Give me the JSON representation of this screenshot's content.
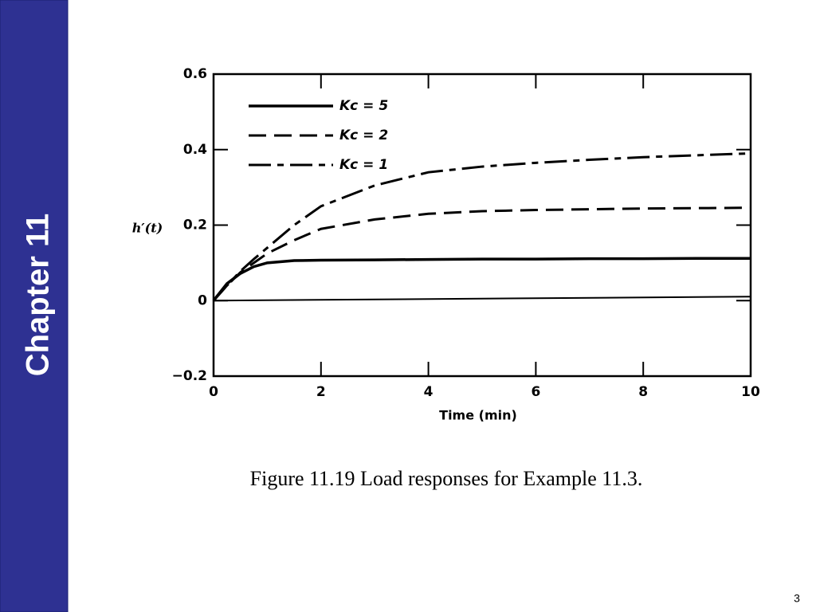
{
  "slide": {
    "sidebar": "Chapter 11",
    "caption": "Figure 11.19 Load responses for Example 11.3.",
    "page_number": "3"
  },
  "chart_data": {
    "type": "line",
    "xlabel": "Time (min)",
    "ylabel": "h′(t)",
    "x": [
      0,
      0.25,
      0.5,
      0.75,
      1,
      1.5,
      2,
      3,
      4,
      5,
      6,
      7,
      8,
      9,
      10
    ],
    "series": [
      {
        "name": "Kc = 5",
        "color": "#000000",
        "dash": "solid",
        "values": [
          0,
          0.045,
          0.072,
          0.09,
          0.1,
          0.106,
          0.107,
          0.108,
          0.109,
          0.11,
          0.11,
          0.111,
          0.111,
          0.112,
          0.112
        ]
      },
      {
        "name": "Kc = 2",
        "color": "#000000",
        "dash": "dashed",
        "values": [
          0,
          0.04,
          0.075,
          0.1,
          0.125,
          0.16,
          0.19,
          0.215,
          0.23,
          0.237,
          0.24,
          0.242,
          0.244,
          0.245,
          0.246
        ]
      },
      {
        "name": "Kc = 1",
        "color": "#000000",
        "dash": "dashdot",
        "values": [
          0,
          0.04,
          0.078,
          0.11,
          0.14,
          0.2,
          0.25,
          0.305,
          0.34,
          0.355,
          0.365,
          0.373,
          0.38,
          0.385,
          0.39
        ]
      }
    ],
    "xlim": [
      0,
      10
    ],
    "xticks": [
      0,
      2,
      4,
      6,
      8,
      10
    ],
    "ylim": [
      -0.2,
      0.6
    ],
    "yticks": [
      {
        "value": -0.2,
        "label": "−0.2"
      },
      0,
      0.2,
      0.4,
      0.6
    ],
    "legend": "upper-left",
    "grid": false
  }
}
